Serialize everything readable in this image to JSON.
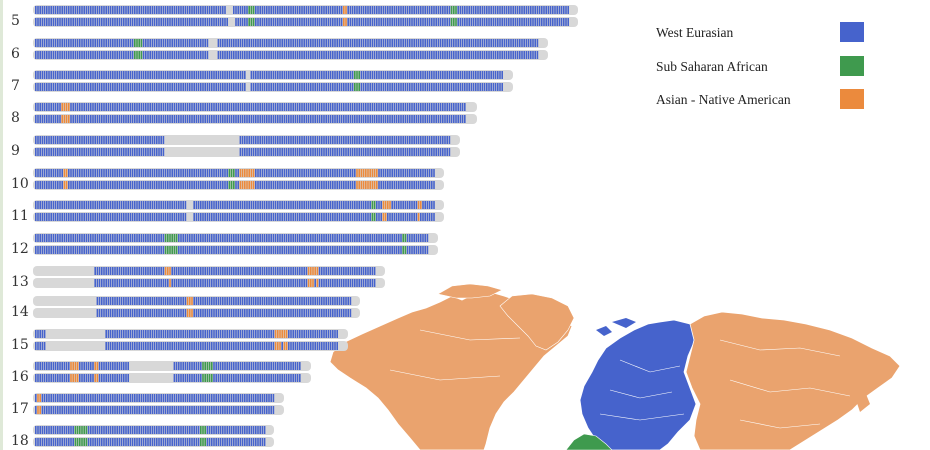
{
  "colors": {
    "west_eurasian": "#4663cc",
    "sub_saharan_african": "#3f9a4e",
    "asian_native_american": "#eb8a3d",
    "missing": "#d8d8d8",
    "map_asian": "#eaa36e",
    "map_west": "#4663cc",
    "map_african": "#3f9a4e"
  },
  "legend": [
    {
      "label": "West Eurasian",
      "color": "#4663cc",
      "icon": "blue-swatch"
    },
    {
      "label": "Sub Saharan African",
      "color": "#3f9a4e",
      "icon": "green-swatch"
    },
    {
      "label": "Asian - Native American",
      "color": "#eb8a3d",
      "icon": "orange-swatch"
    }
  ],
  "chromosomes": [
    {
      "number": "5",
      "gaps": [
        [
          0.355,
          0.368
        ],
        [
          0.37,
          0.375
        ]
      ],
      "seg_green": [
        [
          0.4,
          0.41
        ],
        [
          0.78,
          0.79
        ]
      ],
      "seg_orange": [
        [
          0.575,
          0.585
        ]
      ],
      "top_gray": [
        [
          0.355,
          0.37
        ]
      ],
      "bot_gray": [
        [
          0.36,
          0.372
        ]
      ]
    },
    {
      "number": "6",
      "gaps": [],
      "seg_green": [
        [
          0.195,
          0.21
        ]
      ],
      "seg_orange": [],
      "top_gray": [
        [
          0.345,
          0.36
        ]
      ],
      "bot_gray": [
        [
          0.345,
          0.36
        ]
      ]
    },
    {
      "number": "7",
      "gaps": [],
      "seg_green": [
        [
          0.68,
          0.695
        ]
      ],
      "seg_orange": [],
      "top_gray": [
        [
          0.45,
          0.46
        ]
      ],
      "bot_gray": [
        [
          0.45,
          0.46
        ]
      ]
    },
    {
      "number": "8",
      "gaps": [],
      "seg_green": [],
      "seg_orange": [
        [
          0.06,
          0.08
        ]
      ],
      "top_gray": [],
      "bot_gray": []
    },
    {
      "number": "9",
      "gaps": [],
      "seg_green": [],
      "seg_orange": [],
      "top_gray": [
        [
          0.31,
          0.49
        ]
      ],
      "bot_gray": [
        [
          0.31,
          0.49
        ]
      ]
    },
    {
      "number": "10",
      "gaps": [],
      "seg_green": [
        [
          0.48,
          0.5
        ]
      ],
      "seg_orange": [
        [
          0.07,
          0.08
        ],
        [
          0.51,
          0.55
        ],
        [
          0.8,
          0.86
        ]
      ],
      "top_gray": [],
      "bot_gray": []
    },
    {
      "number": "11",
      "gaps": [],
      "seg_green": [
        [
          0.84,
          0.85
        ]
      ],
      "seg_orange": [
        [
          0.87,
          0.89
        ],
        [
          0.955,
          0.97
        ]
      ],
      "top_gray": [
        [
          0.375,
          0.395
        ]
      ],
      "bot_gray": [
        [
          0.375,
          0.395
        ]
      ]
    },
    {
      "number": "12",
      "gaps": [],
      "seg_green": [
        [
          0.33,
          0.36
        ],
        [
          0.93,
          0.945
        ]
      ],
      "seg_orange": [],
      "top_gray": [],
      "bot_gray": []
    },
    {
      "number": "13",
      "gaps": [],
      "seg_green": [],
      "seg_orange": [
        [
          0.38,
          0.4
        ],
        [
          0.8,
          0.83
        ]
      ],
      "top_gray": [
        [
          0.0,
          0.17
        ]
      ],
      "bot_gray": [
        [
          0.0,
          0.17
        ]
      ]
    },
    {
      "number": "14",
      "gaps": [],
      "seg_green": [],
      "seg_orange": [
        [
          0.48,
          0.5
        ]
      ],
      "top_gray": [
        [
          0.0,
          0.19
        ]
      ],
      "bot_gray": [
        [
          0.0,
          0.19
        ]
      ]
    },
    {
      "number": "15",
      "gaps": [],
      "seg_green": [],
      "seg_orange": [
        [
          0.79,
          0.83
        ]
      ],
      "top_gray": [
        [
          0.03,
          0.23
        ]
      ],
      "bot_gray": [
        [
          0.03,
          0.23
        ]
      ]
    },
    {
      "number": "16",
      "gaps": [],
      "seg_green": [
        [
          0.63,
          0.67
        ]
      ],
      "seg_orange": [
        [
          0.13,
          0.16
        ],
        [
          0.22,
          0.24
        ]
      ],
      "top_gray": [
        [
          0.35,
          0.52
        ]
      ],
      "bot_gray": [
        [
          0.35,
          0.52
        ]
      ]
    },
    {
      "number": "17",
      "gaps": [],
      "seg_green": [],
      "seg_orange": [
        [
          0.005,
          0.02
        ]
      ],
      "top_gray": [],
      "bot_gray": []
    },
    {
      "number": "18",
      "gaps": [],
      "seg_green": [
        [
          0.17,
          0.23
        ],
        [
          0.72,
          0.74
        ]
      ],
      "seg_orange": [],
      "top_gray": [],
      "bot_gray": []
    }
  ]
}
